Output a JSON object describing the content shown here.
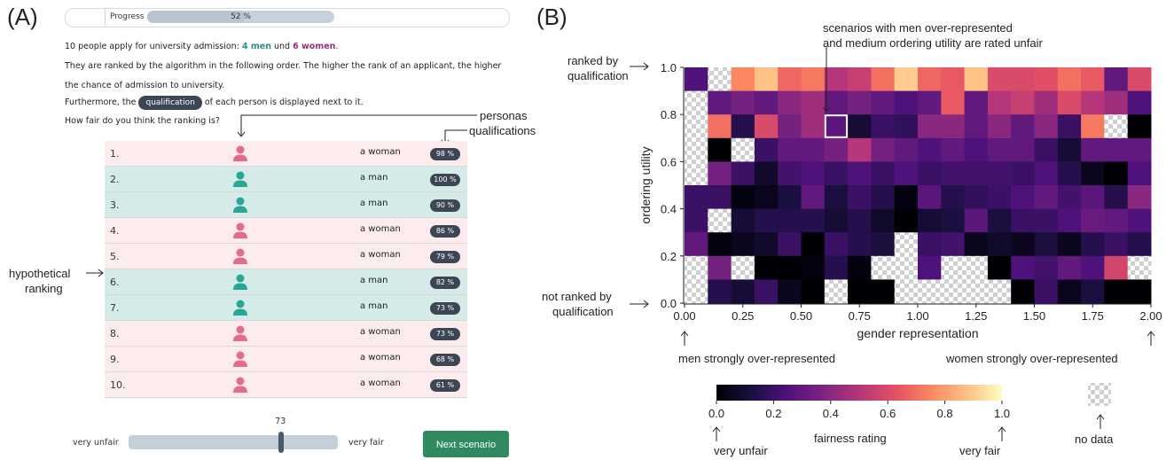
{
  "panel_a": {
    "label": "(A)",
    "progress": {
      "label": "Progress",
      "value_text": "52 %",
      "fraction": 0.52
    },
    "intro": {
      "pre": "10 people apply for university admission: ",
      "men": "4 men",
      "und": " und ",
      "women": "6 women",
      "post": "."
    },
    "line2": "They are ranked by the algorithm in the following order. The higher the rank of an applicant, the higher",
    "line3": "the chance of admission to university.",
    "line4_pre": "Furthermore, the",
    "line4_pill": "qualification",
    "line4_post": "of each person is displayed next to it.",
    "question": "How fair do you think the ranking is?",
    "annotations": {
      "personas": "personas",
      "qualifications": "qualifications",
      "hypothetical": "hypothetical",
      "ranking": "ranking"
    },
    "rows": [
      {
        "rank": "1.",
        "gender": "w",
        "label": "a woman",
        "qual": "98 %"
      },
      {
        "rank": "2.",
        "gender": "m",
        "label": "a man",
        "qual": "100 %"
      },
      {
        "rank": "3.",
        "gender": "m",
        "label": "a man",
        "qual": "90 %"
      },
      {
        "rank": "4.",
        "gender": "w",
        "label": "a woman",
        "qual": "86 %"
      },
      {
        "rank": "5.",
        "gender": "w",
        "label": "a woman",
        "qual": "79 %"
      },
      {
        "rank": "6.",
        "gender": "m",
        "label": "a man",
        "qual": "82 %"
      },
      {
        "rank": "7.",
        "gender": "m",
        "label": "a man",
        "qual": "73 %"
      },
      {
        "rank": "8.",
        "gender": "w",
        "label": "a woman",
        "qual": "73 %"
      },
      {
        "rank": "9.",
        "gender": "w",
        "label": "a woman",
        "qual": "68 %"
      },
      {
        "rank": "10.",
        "gender": "w",
        "label": "a woman",
        "qual": "61 %"
      }
    ],
    "slider": {
      "value": "73",
      "fraction": 0.73,
      "left_label": "very unfair",
      "right_label": "very fair"
    },
    "next_button": "Next scenario",
    "colors": {
      "woman": "#e26b8e",
      "man": "#2aa596",
      "button": "#2f8a5f"
    }
  },
  "panel_b": {
    "label": "(B)",
    "annotation_top_1": "scenarios with men over-represented",
    "annotation_top_2": "and medium ordering utility are rated unfair",
    "ranked_1": "ranked by",
    "ranked_2": "qualification",
    "not_ranked_1": "not ranked by",
    "not_ranked_2": "qualification",
    "men_over": "men strongly over-represented",
    "women_over": "women strongly over-represented",
    "very_unfair": "very unfair",
    "very_fair": "very fair",
    "no_data": "no data",
    "colorbar_label": "fairness rating",
    "colorbar_ticks": [
      "0.0",
      "0.2",
      "0.4",
      "0.6",
      "0.8",
      "1.0"
    ]
  },
  "chart_data": {
    "type": "heatmap",
    "xlabel": "gender representation",
    "ylabel": "ordering utility",
    "xlim": [
      0,
      2
    ],
    "ylim": [
      0,
      1
    ],
    "x_ticks": [
      "0.00",
      "0.25",
      "0.50",
      "0.75",
      "1.00",
      "1.25",
      "1.50",
      "1.75",
      "2.00"
    ],
    "y_ticks": [
      "0.0",
      "0.2",
      "0.4",
      "0.6",
      "0.8",
      "1.0"
    ],
    "n_cols": 20,
    "n_rows": 10,
    "colormap": "magma",
    "highlight": {
      "col": 6,
      "row": 2
    },
    "grid_rows_top_to_bottom": [
      [
        0.25,
        null,
        0.75,
        0.88,
        0.68,
        0.72,
        0.5,
        0.55,
        0.7,
        0.9,
        0.68,
        0.65,
        0.88,
        0.6,
        0.6,
        0.62,
        0.7,
        0.65,
        0.3,
        0.6
      ],
      [
        null,
        0.3,
        0.35,
        0.3,
        0.4,
        0.45,
        0.3,
        0.35,
        0.3,
        0.25,
        0.3,
        0.65,
        0.3,
        0.5,
        0.55,
        0.45,
        0.6,
        0.5,
        0.45,
        0.25
      ],
      [
        null,
        0.7,
        0.15,
        0.6,
        0.35,
        0.45,
        0.28,
        0.1,
        0.2,
        0.18,
        0.4,
        0.4,
        0.3,
        0.4,
        0.3,
        0.4,
        0.2,
        0.72,
        null,
        0.0
      ],
      [
        null,
        0.0,
        null,
        0.2,
        0.3,
        0.3,
        0.35,
        0.5,
        0.35,
        0.3,
        0.25,
        0.3,
        0.25,
        0.3,
        0.3,
        0.2,
        0.1,
        0.3,
        0.3,
        0.3
      ],
      [
        null,
        0.35,
        0.2,
        0.08,
        0.22,
        0.25,
        0.2,
        0.25,
        0.2,
        0.25,
        0.2,
        0.22,
        0.22,
        0.22,
        0.2,
        0.25,
        0.15,
        0.05,
        0.0,
        0.25
      ],
      [
        0.2,
        0.2,
        0.02,
        0.05,
        0.12,
        0.3,
        0.12,
        0.2,
        0.15,
        0.02,
        0.28,
        0.15,
        0.18,
        0.2,
        0.25,
        0.3,
        0.22,
        0.28,
        0.15,
        0.4
      ],
      [
        0.2,
        null,
        0.1,
        0.15,
        0.15,
        0.15,
        0.1,
        0.15,
        0.08,
        0.0,
        0.1,
        0.12,
        0.28,
        0.12,
        0.2,
        0.2,
        0.25,
        0.32,
        0.3,
        0.25
      ],
      [
        0.3,
        0.02,
        0.05,
        0.08,
        0.2,
        0.0,
        0.2,
        0.15,
        0.12,
        null,
        0.2,
        0.22,
        0.05,
        0.08,
        0.05,
        0.12,
        0.05,
        0.15,
        0.2,
        0.15
      ],
      [
        null,
        0.35,
        null,
        0.0,
        0.0,
        0.02,
        0.15,
        0.02,
        null,
        null,
        0.25,
        null,
        null,
        0.0,
        0.25,
        0.22,
        0.3,
        0.25,
        0.58,
        null
      ],
      [
        null,
        0.15,
        0.1,
        0.2,
        0.05,
        0.0,
        null,
        0.0,
        0.0,
        null,
        null,
        null,
        null,
        null,
        0.0,
        0.2,
        0.05,
        0.12,
        0.0,
        0.0
      ]
    ]
  }
}
